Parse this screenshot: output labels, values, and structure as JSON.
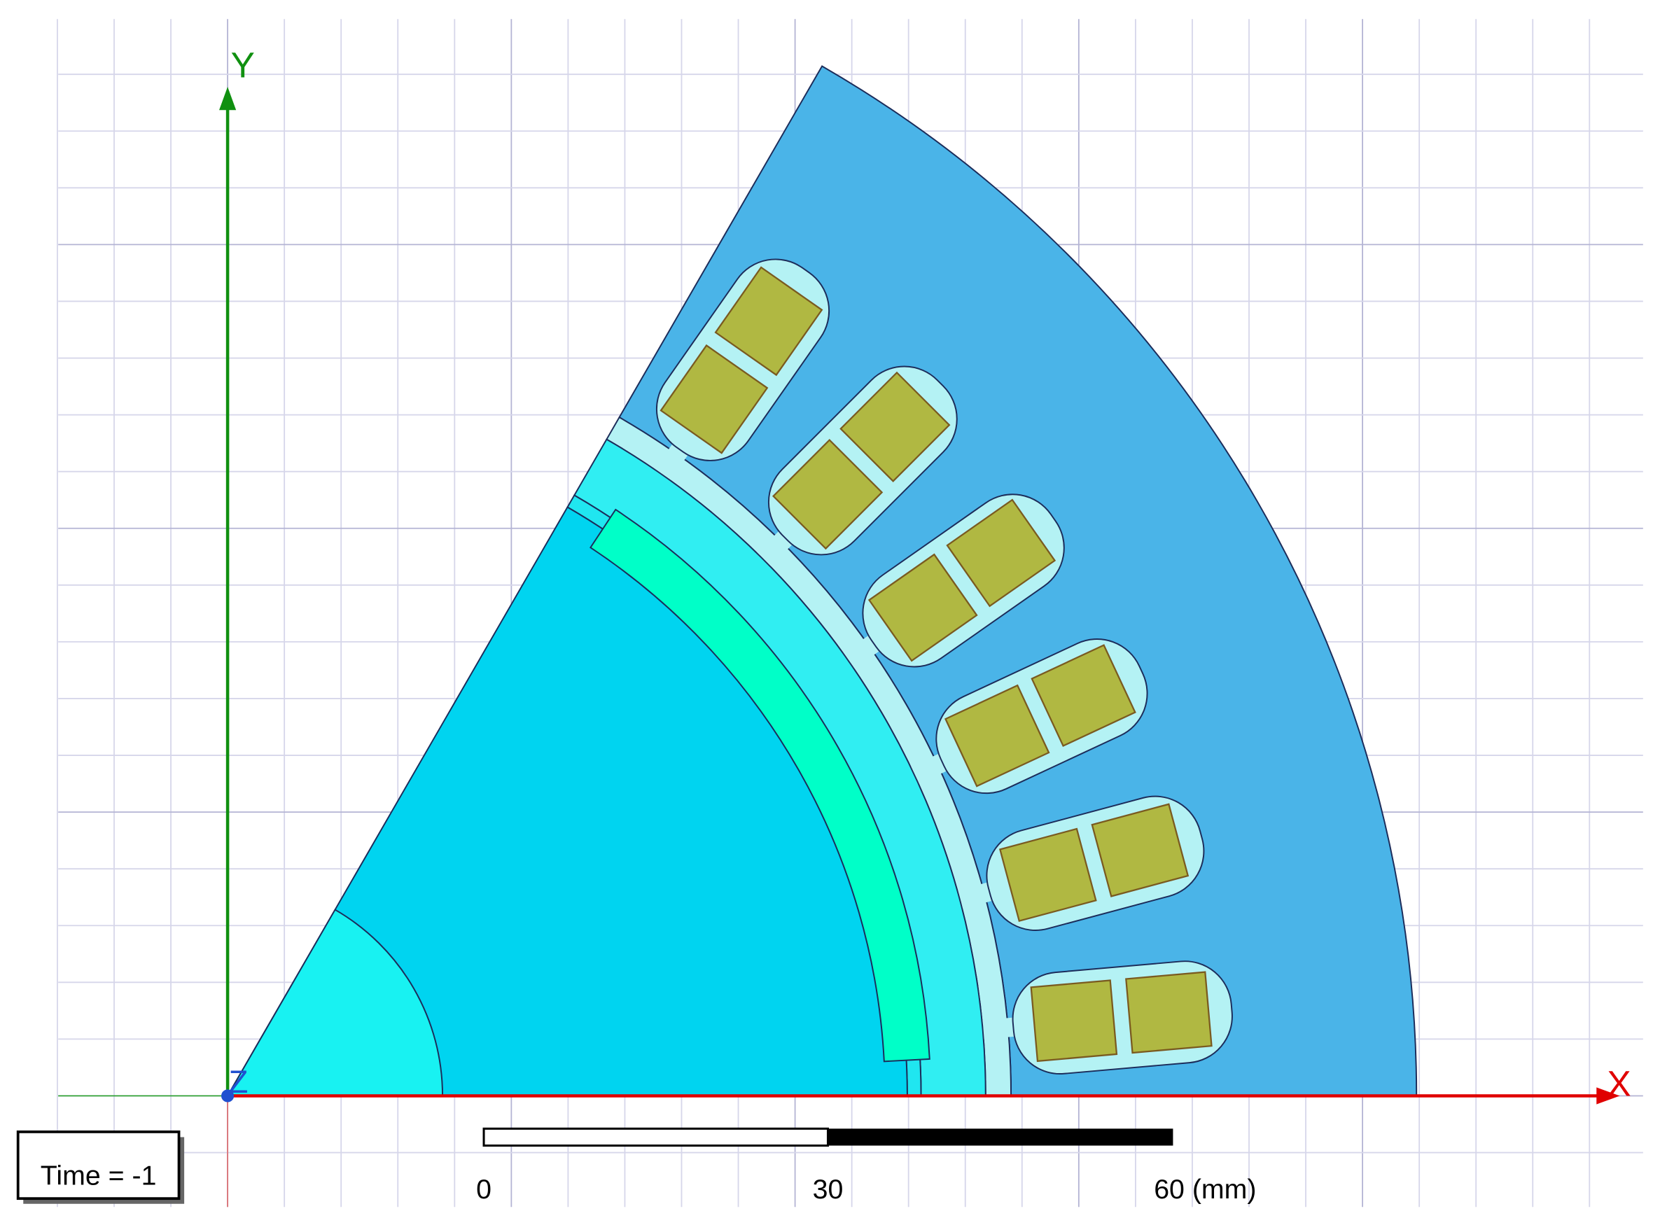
{
  "axes": {
    "x_label": "X",
    "y_label": "Y",
    "z_label": "Z"
  },
  "time_label": "Time = -1",
  "scale_bar": {
    "labels": [
      "0",
      "30",
      "60 (mm)"
    ]
  }
}
